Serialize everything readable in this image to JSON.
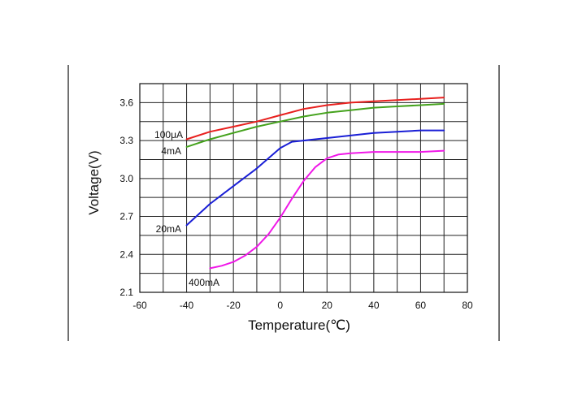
{
  "chart_data": {
    "type": "line",
    "title": "",
    "xlabel": "Temperature(℃)",
    "ylabel": "Voltage(V)",
    "xlim": [
      -60,
      80
    ],
    "ylim": [
      2.1,
      3.6
    ],
    "x_ticks": [
      "-60",
      "-40",
      "-20",
      "0",
      "20",
      "40",
      "60",
      "80"
    ],
    "y_ticks": [
      "2.1",
      "2.4",
      "2.7",
      "3.0",
      "3.3",
      "3.6"
    ],
    "grid": true,
    "legend": "none",
    "series": [
      {
        "name": "100μA",
        "color": "#e8201e",
        "x": [
          -40,
          -30,
          -20,
          -10,
          0,
          10,
          20,
          30,
          40,
          50,
          60,
          70
        ],
        "y": [
          3.31,
          3.37,
          3.41,
          3.45,
          3.5,
          3.55,
          3.58,
          3.6,
          3.61,
          3.62,
          3.63,
          3.64
        ]
      },
      {
        "name": "4mA",
        "color": "#44a21c",
        "x": [
          -40,
          -30,
          -20,
          -10,
          0,
          10,
          20,
          30,
          40,
          50,
          60,
          70
        ],
        "y": [
          3.25,
          3.31,
          3.36,
          3.41,
          3.45,
          3.49,
          3.52,
          3.54,
          3.56,
          3.57,
          3.58,
          3.59
        ]
      },
      {
        "name": "20mA",
        "color": "#1a1fd6",
        "x": [
          -40,
          -30,
          -20,
          -10,
          -5,
          0,
          5,
          10,
          20,
          30,
          40,
          50,
          60,
          70
        ],
        "y": [
          2.63,
          2.8,
          2.94,
          3.08,
          3.16,
          3.24,
          3.29,
          3.3,
          3.32,
          3.34,
          3.36,
          3.37,
          3.38,
          3.38
        ]
      },
      {
        "name": "400mA",
        "color": "#f018e8",
        "x": [
          -30,
          -25,
          -20,
          -15,
          -10,
          -5,
          0,
          5,
          10,
          15,
          20,
          25,
          30,
          40,
          50,
          60,
          70
        ],
        "y": [
          2.29,
          2.31,
          2.34,
          2.39,
          2.46,
          2.56,
          2.69,
          2.84,
          2.98,
          3.09,
          3.16,
          3.19,
          3.2,
          3.21,
          3.21,
          3.21,
          3.22
        ]
      }
    ]
  }
}
